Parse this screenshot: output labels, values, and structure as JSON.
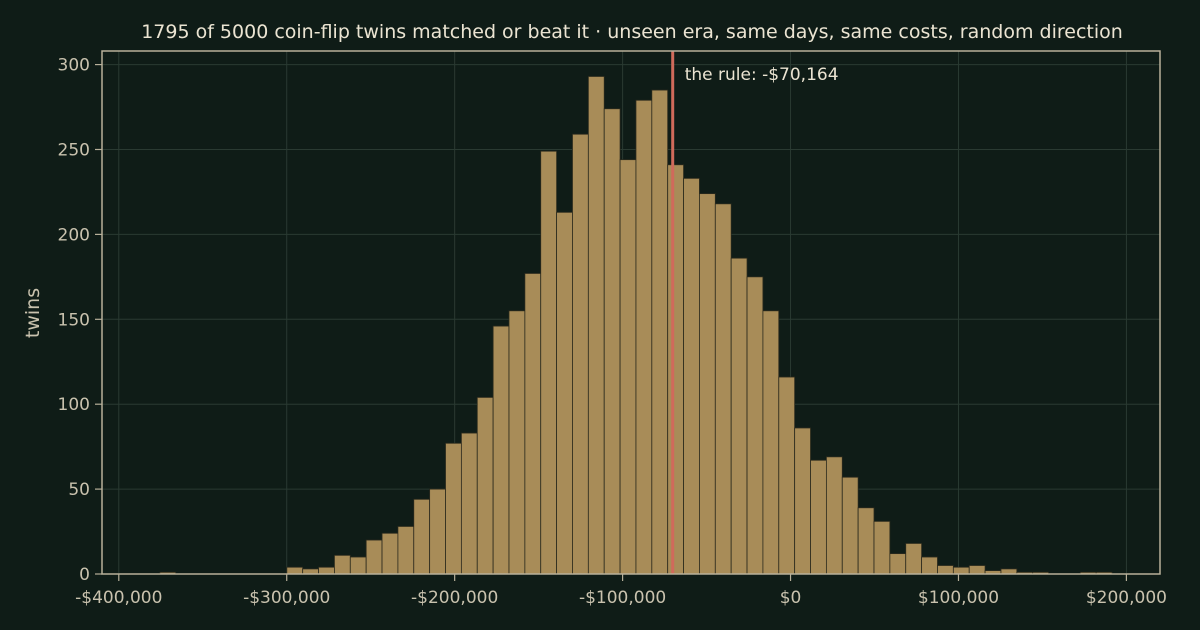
{
  "chart_data": {
    "type": "bar",
    "title": "1795 of 5000 coin-flip twins matched or beat it  ·  unseen era, same days, same costs, random direction",
    "xlabel": "",
    "ylabel": "twins",
    "xlim": [
      -410000,
      220000
    ],
    "ylim": [
      0,
      308
    ],
    "x_ticks": [
      -400000,
      -300000,
      -200000,
      -100000,
      0,
      100000,
      200000
    ],
    "x_tick_labels": [
      "-$400,000",
      "-$300,000",
      "-$200,000",
      "-$100,000",
      "$0",
      "$100,000",
      "$200,000"
    ],
    "y_ticks": [
      0,
      50,
      100,
      150,
      200,
      250,
      300
    ],
    "y_tick_labels": [
      "0",
      "50",
      "100",
      "150",
      "200",
      "250",
      "300"
    ],
    "grid": true,
    "bin_width": 9450,
    "bin_starts": [
      -385000,
      -375550,
      -366100,
      -356650,
      -347200,
      -337750,
      -328300,
      -318850,
      -309400,
      -299950,
      -290500,
      -281050,
      -271600,
      -262150,
      -252700,
      -243250,
      -233800,
      -224350,
      -214900,
      -205450,
      -196000,
      -186550,
      -177100,
      -167650,
      -158200,
      -148750,
      -139300,
      -129850,
      -120400,
      -110950,
      -101500,
      -92050,
      -82600,
      -73150,
      -63700,
      -54250,
      -44800,
      -35350,
      -25900,
      -16450,
      -7000,
      2450,
      11900,
      21350,
      30800,
      40250,
      49700,
      59150,
      68600,
      78050,
      87500,
      96950,
      106400,
      115850,
      125300,
      134750,
      144200,
      153650,
      163100,
      172550,
      182000
    ],
    "values": [
      0,
      1,
      0,
      0,
      0,
      0,
      0,
      0,
      0,
      4,
      3,
      4,
      11,
      10,
      20,
      24,
      28,
      44,
      50,
      77,
      83,
      104,
      146,
      155,
      177,
      249,
      213,
      259,
      293,
      274,
      244,
      279,
      285,
      241,
      233,
      224,
      218,
      186,
      175,
      155,
      116,
      86,
      67,
      69,
      57,
      39,
      31,
      12,
      18,
      10,
      5,
      4,
      5,
      2,
      3,
      1,
      1,
      0,
      0,
      1,
      1
    ],
    "annotation": {
      "label": "the rule: -$70,164",
      "x": -70164
    },
    "colors": {
      "background": "#0f1c17",
      "bar": "#a88c58",
      "rule_line": "#d06a5b"
    }
  }
}
